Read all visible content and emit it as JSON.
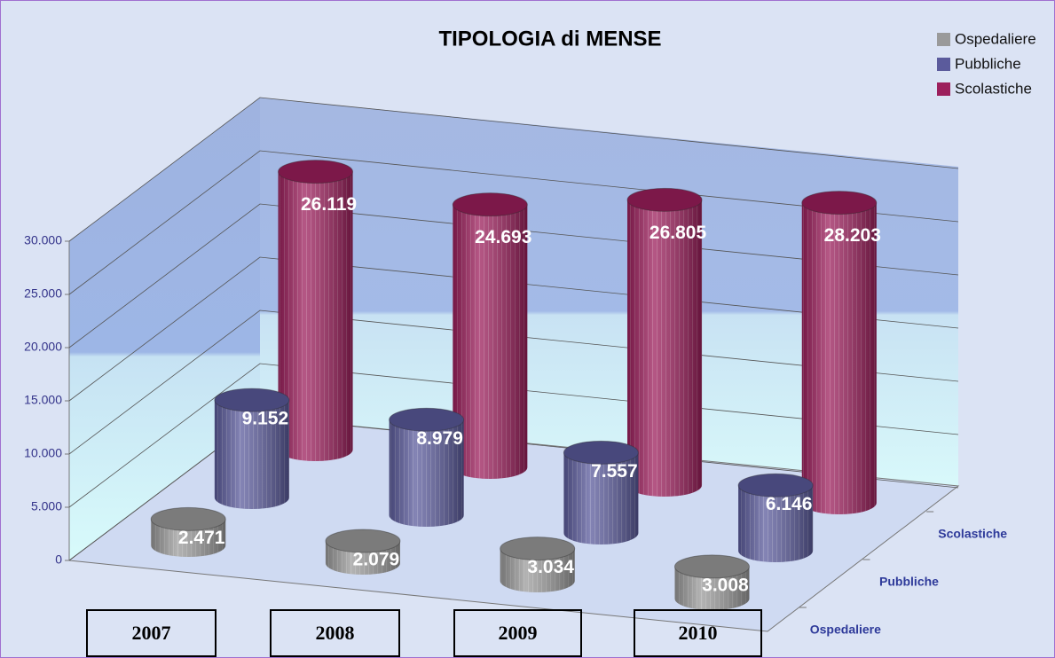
{
  "chart_data": {
    "type": "bar3d",
    "title": "TIPOLOGIA di MENSE",
    "categories": [
      "2007",
      "2008",
      "2009",
      "2010"
    ],
    "series": [
      {
        "name": "Ospedaliere",
        "color": "#9a9a9a",
        "values": [
          2471,
          2079,
          3034,
          3008
        ],
        "value_labels": [
          "2.471",
          "2.079",
          "3.034",
          "3.008"
        ]
      },
      {
        "name": "Pubbliche",
        "color": "#5b5b9c",
        "values": [
          9152,
          8979,
          7557,
          6146
        ],
        "value_labels": [
          "9.152",
          "8.979",
          "7.557",
          "6.146"
        ]
      },
      {
        "name": "Scolastiche",
        "color": "#9c1f5c",
        "values": [
          26119,
          24693,
          26805,
          28203
        ],
        "value_labels": [
          "26.119",
          "24.693",
          "26.805",
          "28.203"
        ]
      }
    ],
    "ylim": [
      0,
      30000
    ],
    "yticks": [
      0,
      {
        "value": 5000,
        "label": "5.000"
      },
      {
        "value": 10000,
        "label": "10.000"
      },
      {
        "value": 15000,
        "label": "15.000"
      },
      {
        "value": 20000,
        "label": "20.000"
      },
      {
        "value": 25000,
        "label": "25.000"
      },
      {
        "value": 30000,
        "label": "30.000"
      }
    ],
    "grid": true,
    "legend": "top-right"
  }
}
